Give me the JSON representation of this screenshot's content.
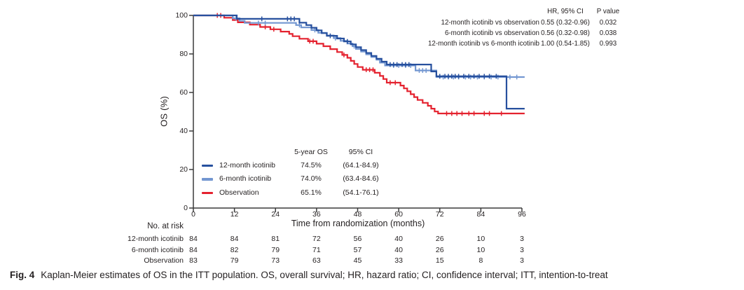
{
  "figure": {
    "caption_label": "Fig. 4",
    "caption_text": "Kaplan-Meier estimates of OS in the ITT population. OS, overall survival; HR, hazard ratio; CI, confidence interval; ITT, intention-to-treat"
  },
  "colors": {
    "arm_12mo": "#27509e",
    "arm_6mo": "#7397d1",
    "observation": "#e4222f",
    "axis": "#3a3a3a",
    "text": "#231f20"
  },
  "hr_table": {
    "headers": [
      "HR, 95% CI",
      "P value"
    ],
    "rows": [
      {
        "label": "12-month icotinib vs observation",
        "hr_ci": "0.55 (0.32-0.96)",
        "p": "0.032"
      },
      {
        "label": "6-month icotinib vs observation",
        "hr_ci": "0.56 (0.32-0.98)",
        "p": "0.038"
      },
      {
        "label": "12-month icotinib vs 6-month icotinib",
        "hr_ci": "1.00 (0.54-1.85)",
        "p": "0.993"
      }
    ]
  },
  "legend": {
    "headers": [
      "5-year OS",
      "95% CI"
    ],
    "rows": [
      {
        "label": "12-month icotinib",
        "os": "74.5%",
        "ci": "(64.1-84.9)",
        "color_key": "arm_12mo"
      },
      {
        "label": "6-month icotinib",
        "os": "74.0%",
        "ci": "(63.4-84.6)",
        "color_key": "arm_6mo"
      },
      {
        "label": "Observation",
        "os": "65.1%",
        "ci": "(54.1-76.1)",
        "color_key": "observation"
      }
    ]
  },
  "chart_data": {
    "type": "line",
    "subtype": "kaplan-meier-step",
    "title": "",
    "xlabel": "Time from randomization (months)",
    "ylabel": "OS (%)",
    "xlim": [
      0,
      96
    ],
    "ylim": [
      0,
      100
    ],
    "xticks": [
      0,
      12,
      24,
      36,
      48,
      60,
      72,
      84,
      96
    ],
    "yticks": [
      0,
      20,
      40,
      60,
      80,
      100
    ],
    "grid": false,
    "legend_position": "inside-lower-left",
    "series": [
      {
        "name": "12-month icotinib",
        "color_key": "arm_12mo",
        "five_year_os_pct": 74.5,
        "five_year_ci": [
          64.1,
          84.9
        ],
        "steps": [
          [
            0,
            100
          ],
          [
            12.7,
            100
          ],
          [
            12.7,
            98.2
          ],
          [
            31,
            98.2
          ],
          [
            31,
            96.2
          ],
          [
            33,
            96.2
          ],
          [
            33,
            95
          ],
          [
            34.5,
            95
          ],
          [
            34.5,
            93.6
          ],
          [
            36,
            93.6
          ],
          [
            36,
            92.2
          ],
          [
            37.5,
            92.2
          ],
          [
            37.5,
            90.8
          ],
          [
            39,
            90.8
          ],
          [
            39,
            89.4
          ],
          [
            42,
            89.4
          ],
          [
            42,
            88
          ],
          [
            44,
            88
          ],
          [
            44,
            86.5
          ],
          [
            46,
            86.5
          ],
          [
            46,
            85
          ],
          [
            47.5,
            85
          ],
          [
            47.5,
            83.5
          ],
          [
            49,
            83.5
          ],
          [
            49,
            82
          ],
          [
            50.5,
            82
          ],
          [
            50.5,
            80.5
          ],
          [
            52,
            80.5
          ],
          [
            52,
            79
          ],
          [
            53.5,
            79
          ],
          [
            53.5,
            77.5
          ],
          [
            55,
            77.5
          ],
          [
            55,
            76
          ],
          [
            56.5,
            76
          ],
          [
            56.5,
            74.5
          ],
          [
            69.5,
            74.5
          ],
          [
            69.5,
            70.9
          ],
          [
            71,
            70.9
          ],
          [
            71,
            68.4
          ],
          [
            91.5,
            68.4
          ],
          [
            91.5,
            51.6
          ],
          [
            96.8,
            51.6
          ]
        ],
        "censors": [
          [
            20,
            98.2
          ],
          [
            27.5,
            98.2
          ],
          [
            28.5,
            98.2
          ],
          [
            29.5,
            98.2
          ],
          [
            40,
            89.4
          ],
          [
            45,
            86.5
          ],
          [
            57.5,
            74.5
          ],
          [
            58.5,
            74.5
          ],
          [
            59.5,
            74.5
          ],
          [
            61,
            74.5
          ],
          [
            62,
            74.5
          ],
          [
            63,
            74.5
          ],
          [
            72,
            68.4
          ],
          [
            73.5,
            68.4
          ],
          [
            74.5,
            68.4
          ],
          [
            75.5,
            68.4
          ],
          [
            76.5,
            68.4
          ],
          [
            77.5,
            68.4
          ],
          [
            79,
            68.4
          ],
          [
            80.5,
            68.4
          ],
          [
            82,
            68.4
          ],
          [
            83.5,
            68.4
          ],
          [
            85,
            68.4
          ],
          [
            86.5,
            68.4
          ],
          [
            88.5,
            68.4
          ]
        ]
      },
      {
        "name": "6-month icotinib",
        "color_key": "arm_6mo",
        "five_year_os_pct": 74.0,
        "five_year_ci": [
          63.4,
          84.6
        ],
        "steps": [
          [
            0,
            100
          ],
          [
            11.5,
            100
          ],
          [
            11.5,
            98.5
          ],
          [
            13.5,
            98.5
          ],
          [
            13.5,
            97.2
          ],
          [
            15,
            97.2
          ],
          [
            15,
            96.1
          ],
          [
            30,
            96.1
          ],
          [
            30,
            95
          ],
          [
            31.5,
            95
          ],
          [
            31.5,
            93.8
          ],
          [
            34.5,
            93.8
          ],
          [
            34.5,
            92.4
          ],
          [
            36.5,
            92.4
          ],
          [
            36.5,
            91
          ],
          [
            39,
            91
          ],
          [
            39,
            89.6
          ],
          [
            41,
            89.6
          ],
          [
            41,
            88.2
          ],
          [
            43,
            88.2
          ],
          [
            43,
            86.8
          ],
          [
            45,
            86.8
          ],
          [
            45,
            85.4
          ],
          [
            46.5,
            85.4
          ],
          [
            46.5,
            84
          ],
          [
            47.5,
            84
          ],
          [
            47.5,
            82.6
          ],
          [
            49,
            82.6
          ],
          [
            49,
            81.2
          ],
          [
            50.5,
            81.2
          ],
          [
            50.5,
            79.8
          ],
          [
            52,
            79.8
          ],
          [
            52,
            78.4
          ],
          [
            53.5,
            78.4
          ],
          [
            53.5,
            77
          ],
          [
            54.5,
            77
          ],
          [
            54.5,
            75.5
          ],
          [
            56,
            75.5
          ],
          [
            56,
            74
          ],
          [
            64.9,
            74
          ],
          [
            64.9,
            71.4
          ],
          [
            71,
            71.4
          ],
          [
            71,
            68
          ],
          [
            96.8,
            68
          ]
        ],
        "censors": [
          [
            12.5,
            98.5
          ],
          [
            19,
            96.1
          ],
          [
            21,
            96.1
          ],
          [
            31,
            95
          ],
          [
            35.5,
            92.4
          ],
          [
            41.5,
            88.2
          ],
          [
            47,
            84
          ],
          [
            58.5,
            74
          ],
          [
            60,
            74
          ],
          [
            62,
            74
          ],
          [
            63.5,
            74
          ],
          [
            66,
            71.4
          ],
          [
            67,
            71.4
          ],
          [
            68,
            71.4
          ],
          [
            73,
            68
          ],
          [
            74.5,
            68
          ],
          [
            76,
            68
          ],
          [
            77.5,
            68
          ],
          [
            79.5,
            68
          ],
          [
            81,
            68
          ],
          [
            83,
            68
          ],
          [
            85,
            68
          ],
          [
            87,
            68
          ],
          [
            89,
            68
          ],
          [
            92.5,
            68
          ],
          [
            94.5,
            68
          ]
        ]
      },
      {
        "name": "Observation",
        "color_key": "observation",
        "five_year_os_pct": 65.1,
        "five_year_ci": [
          54.1,
          76.1
        ],
        "steps": [
          [
            0,
            100
          ],
          [
            9,
            100
          ],
          [
            9,
            98.8
          ],
          [
            11.5,
            98.8
          ],
          [
            11.5,
            97.6
          ],
          [
            13,
            97.6
          ],
          [
            13,
            96.4
          ],
          [
            16.5,
            96.4
          ],
          [
            16.5,
            95.2
          ],
          [
            19.5,
            95.2
          ],
          [
            19.5,
            94
          ],
          [
            22.5,
            94
          ],
          [
            22.5,
            92.8
          ],
          [
            25.5,
            92.8
          ],
          [
            25.5,
            91.6
          ],
          [
            28,
            91.6
          ],
          [
            28,
            90.4
          ],
          [
            29,
            90.4
          ],
          [
            29,
            89.2
          ],
          [
            31,
            89.2
          ],
          [
            31,
            87.9
          ],
          [
            33.5,
            87.9
          ],
          [
            33.5,
            86.6
          ],
          [
            36,
            86.6
          ],
          [
            36,
            85.3
          ],
          [
            38,
            85.3
          ],
          [
            38,
            84
          ],
          [
            40,
            84
          ],
          [
            40,
            82.5
          ],
          [
            42,
            82.5
          ],
          [
            42,
            81
          ],
          [
            43.5,
            81
          ],
          [
            43.5,
            79.5
          ],
          [
            45,
            79.5
          ],
          [
            45,
            78
          ],
          [
            46,
            78
          ],
          [
            46,
            76.4
          ],
          [
            47,
            76.4
          ],
          [
            47,
            74.8
          ],
          [
            48,
            74.8
          ],
          [
            48,
            73.2
          ],
          [
            49.5,
            73.2
          ],
          [
            49.5,
            71.8
          ],
          [
            53,
            71.8
          ],
          [
            53,
            70.2
          ],
          [
            54.5,
            70.2
          ],
          [
            54.5,
            68.6
          ],
          [
            55.5,
            68.6
          ],
          [
            55.5,
            67
          ],
          [
            56.5,
            67
          ],
          [
            56.5,
            65.1
          ],
          [
            60.5,
            65.1
          ],
          [
            60.5,
            63.6
          ],
          [
            61.5,
            63.6
          ],
          [
            61.5,
            62.1
          ],
          [
            62.5,
            62.1
          ],
          [
            62.5,
            60.6
          ],
          [
            63.5,
            60.6
          ],
          [
            63.5,
            59.1
          ],
          [
            64.5,
            59.1
          ],
          [
            64.5,
            57.6
          ],
          [
            65.5,
            57.6
          ],
          [
            65.5,
            56.1
          ],
          [
            67,
            56.1
          ],
          [
            67,
            54.6
          ],
          [
            68.5,
            54.6
          ],
          [
            68.5,
            53.1
          ],
          [
            69.5,
            53.1
          ],
          [
            69.5,
            51.6
          ],
          [
            70.5,
            51.6
          ],
          [
            70.5,
            50.1
          ],
          [
            71.5,
            50.1
          ],
          [
            71.5,
            49.1
          ],
          [
            96.8,
            49.1
          ]
        ],
        "censors": [
          [
            7,
            100
          ],
          [
            8,
            100
          ],
          [
            21,
            94
          ],
          [
            23.5,
            92.8
          ],
          [
            34,
            86.6
          ],
          [
            35,
            86.6
          ],
          [
            44,
            79.5
          ],
          [
            50.5,
            71.8
          ],
          [
            51.5,
            71.8
          ],
          [
            52.5,
            71.8
          ],
          [
            57.5,
            65.1
          ],
          [
            59,
            65.1
          ],
          [
            74,
            49.1
          ],
          [
            75.5,
            49.1
          ],
          [
            77,
            49.1
          ],
          [
            78.5,
            49.1
          ],
          [
            80.5,
            49.1
          ],
          [
            82,
            49.1
          ],
          [
            85,
            49.1
          ],
          [
            86.5,
            49.1
          ],
          [
            90,
            49.1
          ]
        ]
      }
    ]
  },
  "risk_table": {
    "title": "No. at risk",
    "rows": [
      {
        "label": "12-month icotinib",
        "counts": [
          84,
          84,
          81,
          72,
          56,
          40,
          26,
          10,
          3
        ]
      },
      {
        "label": "6-month icotinib",
        "counts": [
          84,
          82,
          79,
          71,
          57,
          40,
          26,
          10,
          3
        ]
      },
      {
        "label": "Observation",
        "counts": [
          83,
          79,
          73,
          63,
          45,
          33,
          15,
          8,
          3
        ]
      }
    ]
  }
}
